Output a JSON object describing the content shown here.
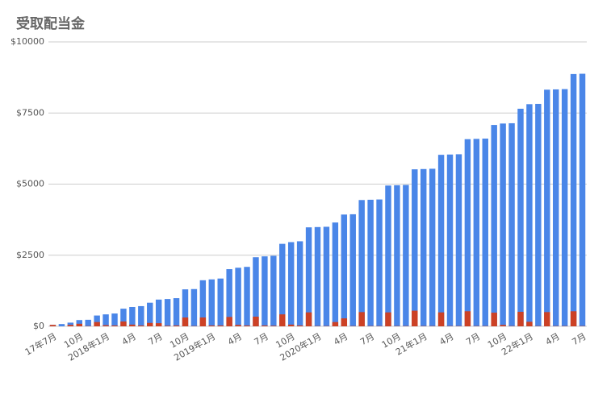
{
  "chart_data": {
    "type": "bar",
    "title": "受取配当金",
    "categories": [
      "17年7月",
      null,
      null,
      "10月",
      null,
      null,
      "2018年1月",
      null,
      null,
      "4月",
      null,
      null,
      "7月",
      null,
      null,
      "10月",
      null,
      null,
      "2019年1月",
      null,
      null,
      "4月",
      null,
      null,
      "7月",
      null,
      null,
      "10月",
      null,
      null,
      "2020年1月",
      null,
      null,
      "4月",
      null,
      null,
      "7月",
      null,
      null,
      "10月",
      null,
      null,
      "21年1月",
      null,
      null,
      "4月",
      null,
      null,
      "7月",
      null,
      null,
      "10月",
      null,
      null,
      "22年1月",
      null,
      null,
      "4月",
      null,
      null,
      "7月"
    ],
    "series": [
      {
        "color": "#4a86e8",
        "values": [
          50,
          80,
          130,
          220,
          230,
          380,
          420,
          450,
          620,
          680,
          710,
          830,
          940,
          960,
          990,
          1300,
          1310,
          1620,
          1650,
          1680,
          2010,
          2060,
          2090,
          2430,
          2460,
          2480,
          2900,
          2960,
          2990,
          3480,
          3490,
          3500,
          3650,
          3930,
          3940,
          4440,
          4450,
          4460,
          4950,
          4960,
          4970,
          5520,
          5530,
          5540,
          6030,
          6040,
          6050,
          6580,
          6590,
          6600,
          7080,
          7130,
          7140,
          7650,
          7810,
          7820,
          8320,
          8330,
          8340,
          8870,
          8880
        ]
      },
      {
        "color": "#cc4125",
        "values": [
          50,
          0,
          50,
          90,
          10,
          150,
          40,
          30,
          170,
          60,
          30,
          120,
          110,
          20,
          30,
          310,
          10,
          310,
          30,
          30,
          330,
          50,
          30,
          340,
          30,
          20,
          420,
          60,
          30,
          490,
          10,
          10,
          150,
          280,
          10,
          500,
          10,
          10,
          490,
          10,
          10,
          550,
          10,
          10,
          490,
          10,
          10,
          530,
          10,
          10,
          480,
          50,
          10,
          510,
          160,
          10,
          500,
          10,
          10,
          530,
          10
        ]
      }
    ],
    "ylim": [
      0,
      10000
    ],
    "yticks": [
      {
        "value": 0,
        "label": "$0"
      },
      {
        "value": 2500,
        "label": "$2500"
      },
      {
        "value": 5000,
        "label": "$5000"
      },
      {
        "value": 7500,
        "label": "$7500"
      },
      {
        "value": 10000,
        "label": "$10000"
      }
    ],
    "grid": true
  }
}
